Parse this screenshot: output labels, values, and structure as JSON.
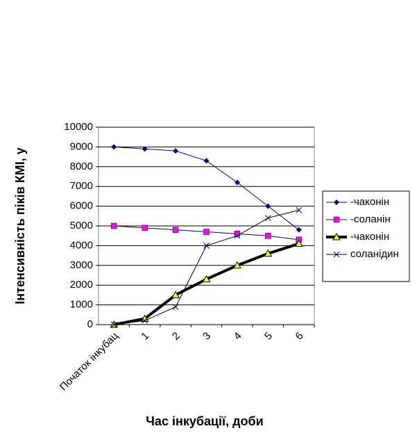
{
  "chart_data": {
    "type": "line",
    "y_label": "Інтенсивність піків КМІ, у",
    "x_label": "Час інкубації, доби",
    "categories": [
      "Початок інкубац",
      "1",
      "2",
      "3",
      "4",
      "5",
      "6"
    ],
    "series": [
      {
        "name": "-чаконін",
        "color": "#000080",
        "marker": "diamond",
        "marker_color": "#000080",
        "line_width": 1,
        "values": [
          9000,
          8900,
          8800,
          8300,
          7200,
          6000,
          4800
        ]
      },
      {
        "name": "-соланін",
        "color": "#000080",
        "marker": "square",
        "marker_color": "#ff00ff",
        "line_width": 1,
        "values": [
          5000,
          4900,
          4800,
          4700,
          4600,
          4500,
          4300
        ]
      },
      {
        "name": "-чаконін",
        "color": "#000000",
        "marker": "triangle",
        "marker_color": "#ffff00",
        "line_width": 4,
        "values": [
          0,
          300,
          1500,
          2300,
          3000,
          3600,
          4100
        ]
      },
      {
        "name": "соланідин",
        "color": "#000000",
        "marker": "x",
        "marker_color": "#000080",
        "line_width": 1,
        "values": [
          0,
          200,
          900,
          4000,
          4500,
          5400,
          5800
        ]
      }
    ],
    "ylim": [
      0,
      10000
    ],
    "yticks": [
      0,
      1000,
      2000,
      3000,
      4000,
      5000,
      6000,
      7000,
      8000,
      9000,
      10000
    ],
    "grid": true
  }
}
